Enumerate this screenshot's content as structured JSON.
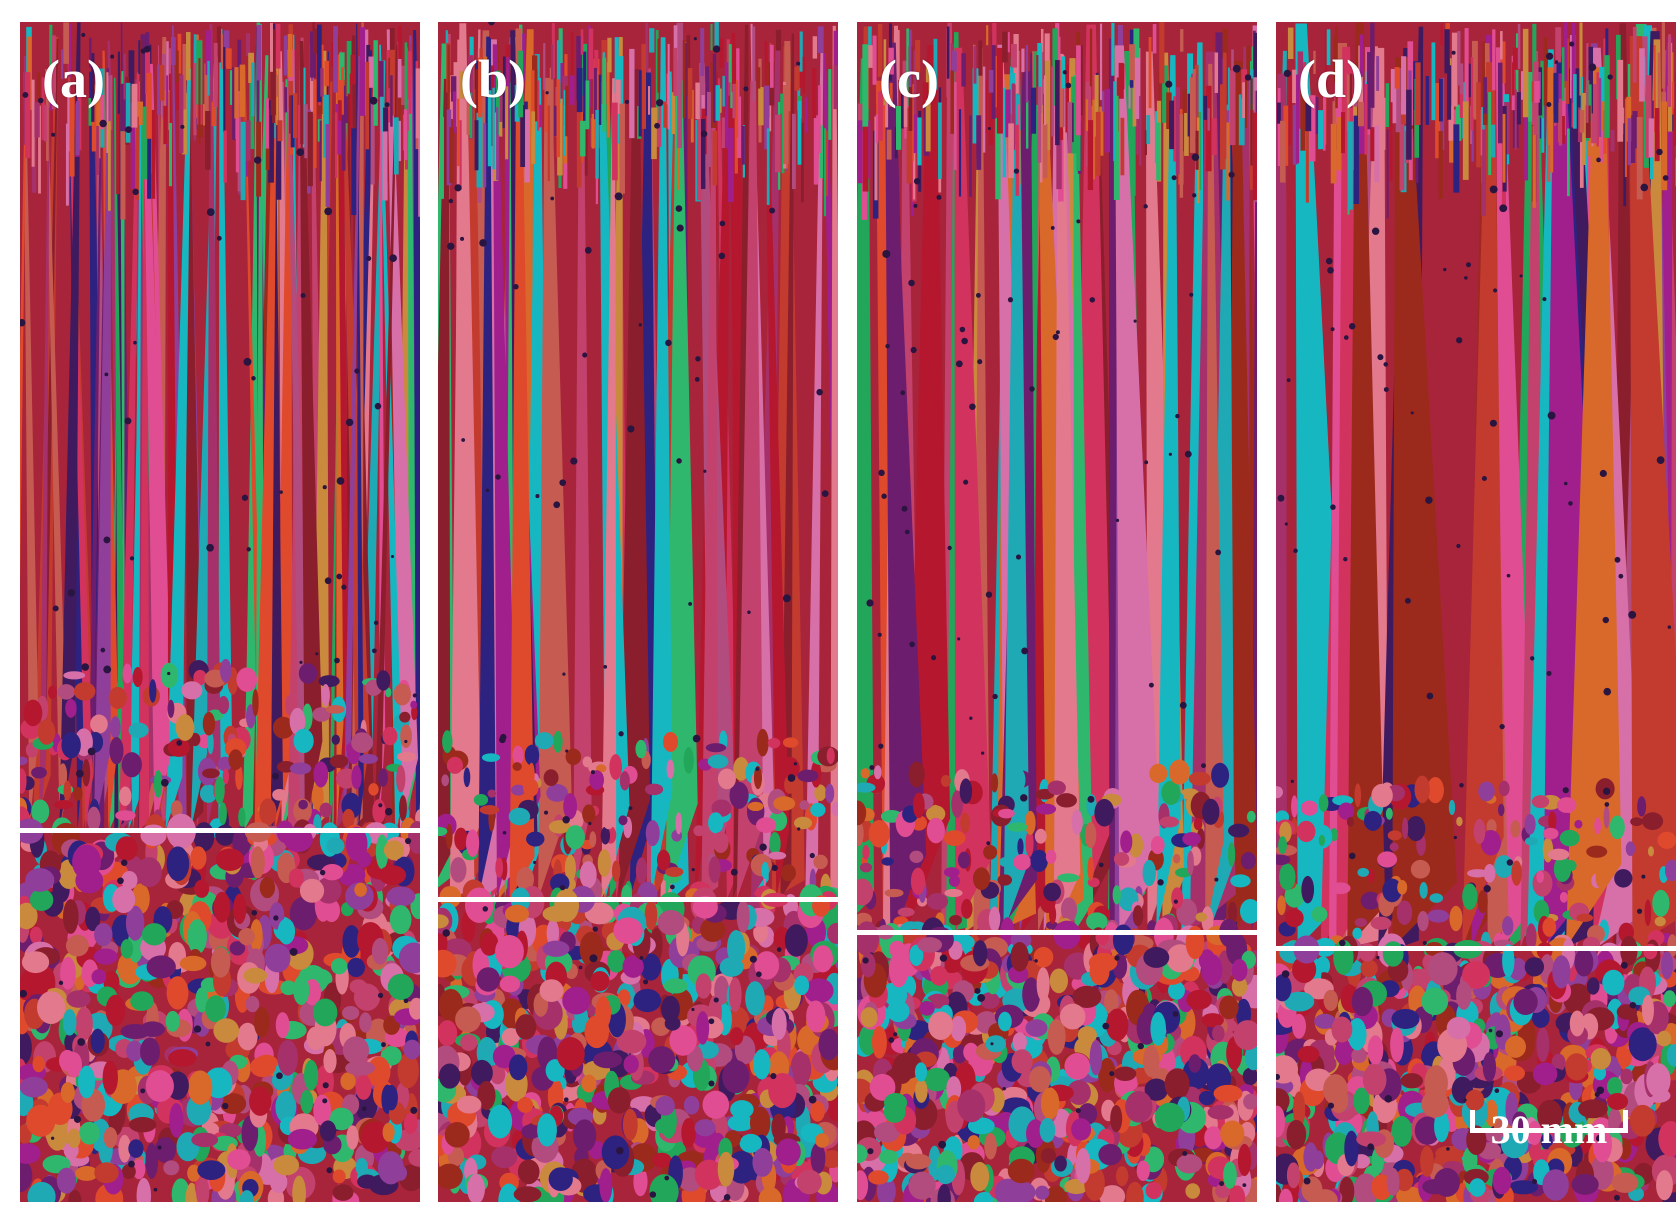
{
  "figure": {
    "panels": [
      {
        "label": "(a)",
        "columnar_fraction": 0.685
      },
      {
        "label": "(b)",
        "columnar_fraction": 0.743
      },
      {
        "label": "(c)",
        "columnar_fraction": 0.771
      },
      {
        "label": "(d)",
        "columnar_fraction": 0.785
      }
    ],
    "scale_bar": {
      "label": "30 mm"
    },
    "grain_palette": [
      "#b5172f",
      "#d2335e",
      "#8a1e2d",
      "#c2426d",
      "#e14d93",
      "#a01f8c",
      "#6d1d6d",
      "#3f1a5e",
      "#2d2280",
      "#1fa9b4",
      "#17b7c2",
      "#22a65a",
      "#2fb86d",
      "#c98a3d",
      "#d9692a",
      "#e04a2c",
      "#b24b7e",
      "#d76fa9",
      "#9c2a1c",
      "#c33b2f",
      "#8f3f9a",
      "#a5306a",
      "#e2798d",
      "#c65b52"
    ]
  }
}
